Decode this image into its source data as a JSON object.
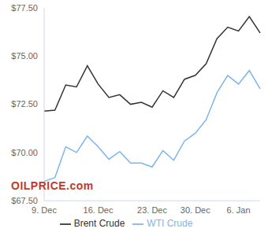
{
  "chart_data": {
    "type": "line",
    "categories": [
      "9. Dec",
      null,
      null,
      null,
      null,
      "16. Dec",
      null,
      null,
      null,
      null,
      "23. Dec",
      null,
      null,
      null,
      "30. Dec",
      null,
      null,
      null,
      "6. Jan",
      null,
      null
    ],
    "series": [
      {
        "name": "WTI Crude",
        "color": "#7cb5ec",
        "values": [
          68.5,
          68.7,
          70.3,
          70.0,
          70.85,
          70.3,
          69.65,
          70.05,
          69.45,
          69.45,
          69.25,
          70.1,
          69.6,
          70.6,
          71.0,
          71.7,
          73.1,
          74.0,
          73.55,
          74.25,
          73.3
        ]
      },
      {
        "name": "Brent Crude",
        "color": "#333333",
        "values": [
          72.15,
          72.2,
          73.5,
          73.4,
          74.5,
          73.55,
          72.85,
          73.0,
          72.5,
          72.6,
          72.35,
          73.2,
          72.85,
          73.8,
          74.0,
          74.6,
          75.9,
          76.5,
          76.3,
          77.05,
          76.2
        ]
      }
    ],
    "ylim": [
      67.5,
      77.5
    ],
    "yticks": [
      {
        "value": 67.5,
        "label": "$67.50"
      },
      {
        "value": 70,
        "label": "$70.00"
      },
      {
        "value": 72.5,
        "label": "$72.50"
      },
      {
        "value": 75,
        "label": "$75.00"
      },
      {
        "value": 77.5,
        "label": "$77.50"
      }
    ],
    "annotations": [
      "OILPRICE.com"
    ],
    "grid": false,
    "legend": "bottom"
  }
}
